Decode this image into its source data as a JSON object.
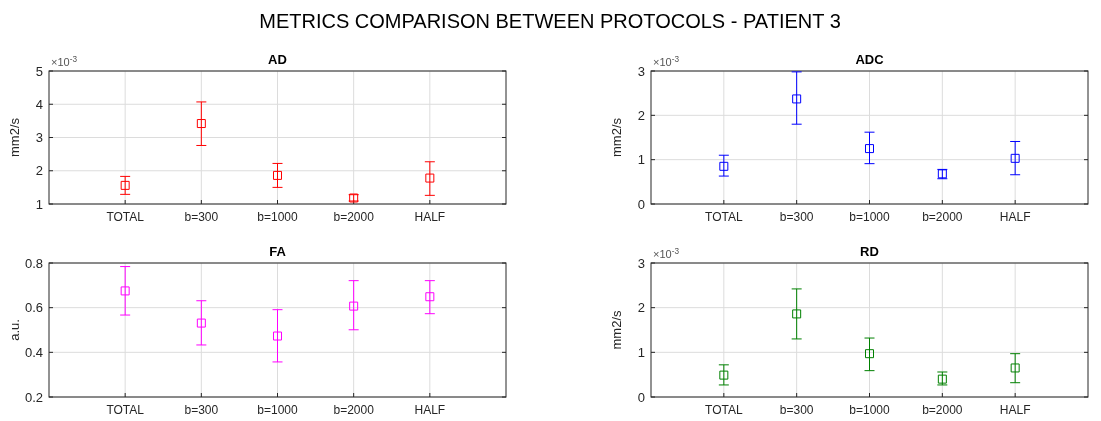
{
  "chart_data": [
    {
      "type": "scatter",
      "title": "AD",
      "ylabel": "mm2/s",
      "annotations": [
        "METRICS COMPARISON BETWEEN PROTOCOLS - PATIENT 3",
        "×10$^{-3}$"
      ],
      "categories": [
        null,
        "TOTAL",
        "b=300",
        "b=1000",
        "b=2000",
        "HALF",
        null
      ],
      "values": [
        null,
        1.56,
        3.42,
        1.86,
        1.18,
        1.78,
        null
      ],
      "errors": [
        null,
        [
          1.29,
          1.83
        ],
        [
          2.76,
          4.07
        ],
        [
          1.5,
          2.22
        ],
        [
          1.09,
          1.28
        ],
        [
          1.26,
          2.27
        ],
        null
      ],
      "color": "#ff0000",
      "marker": "square",
      "ylim": [
        1,
        5
      ],
      "yticks": [
        1,
        2,
        3,
        4,
        5
      ],
      "grid": true
    },
    {
      "type": "scatter",
      "title": "ADC",
      "ylabel": "mm2/s",
      "annotations": [
        "×10$^{-3}$"
      ],
      "categories": [
        null,
        "TOTAL",
        "b=300",
        "b=1000",
        "b=2000",
        "HALF",
        null
      ],
      "values": [
        null,
        0.85,
        2.37,
        1.25,
        0.68,
        1.03,
        null
      ],
      "errors": [
        null,
        [
          0.63,
          1.1
        ],
        [
          1.8,
          2.98
        ],
        [
          0.91,
          1.62
        ],
        [
          0.57,
          0.78
        ],
        [
          0.66,
          1.41
        ],
        null
      ],
      "color": "#0000ff",
      "marker": "square",
      "ylim": [
        0,
        3
      ],
      "yticks": [
        0,
        1,
        2,
        3
      ],
      "grid": true
    },
    {
      "type": "scatter",
      "title": "FA",
      "ylabel": "a.u.",
      "categories": [
        null,
        "TOTAL",
        "b=300",
        "b=1000",
        "b=2000",
        "HALF",
        null
      ],
      "values": [
        null,
        0.675,
        0.531,
        0.473,
        0.607,
        0.649,
        null
      ],
      "errors": [
        null,
        [
          0.567,
          0.784
        ],
        [
          0.433,
          0.631
        ],
        [
          0.357,
          0.591
        ],
        [
          0.501,
          0.721
        ],
        [
          0.573,
          0.721
        ],
        null
      ],
      "color": "#ff00ff",
      "marker": "square",
      "ylim": [
        0.2,
        0.8
      ],
      "yticks": [
        0.2,
        0.4,
        0.6,
        0.8
      ],
      "grid": true
    },
    {
      "type": "scatter",
      "title": "RD",
      "ylabel": "mm2/s",
      "annotations": [
        "×10$^{-3}$"
      ],
      "categories": [
        null,
        "TOTAL",
        "b=300",
        "b=1000",
        "b=2000",
        "HALF",
        null
      ],
      "values": [
        null,
        0.49,
        1.86,
        0.97,
        0.4,
        0.65,
        null
      ],
      "errors": [
        null,
        [
          0.27,
          0.72
        ],
        [
          1.3,
          2.42
        ],
        [
          0.59,
          1.32
        ],
        [
          0.27,
          0.56
        ],
        [
          0.32,
          0.97
        ],
        null
      ],
      "color": "#008000",
      "marker": "square",
      "ylim": [
        0,
        3
      ],
      "yticks": [
        0,
        1,
        2,
        3
      ],
      "grid": true
    }
  ]
}
